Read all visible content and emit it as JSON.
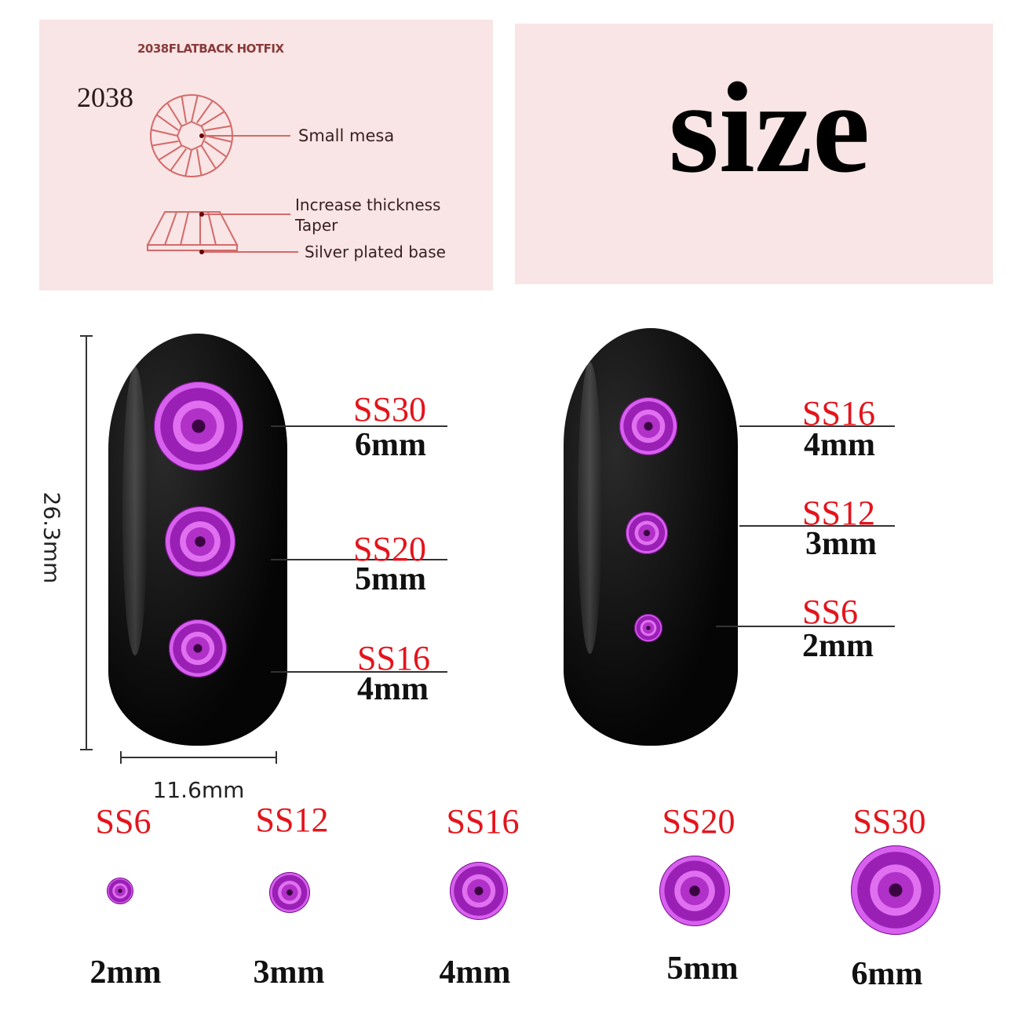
{
  "diagram": {
    "header": "2038FLATBACK HOTFIX",
    "model": "2038",
    "labels": [
      "Small mesa",
      "Increase thickness",
      "Taper",
      "Silver plated base"
    ]
  },
  "title": "size",
  "nail_dims": {
    "height": "26.3mm",
    "width": "11.6mm"
  },
  "left_nail": [
    {
      "ss": "SS30",
      "mm": "6mm"
    },
    {
      "ss": "SS20",
      "mm": "5mm"
    },
    {
      "ss": "SS16",
      "mm": "4mm"
    }
  ],
  "right_nail": [
    {
      "ss": "SS16",
      "mm": "4mm"
    },
    {
      "ss": "SS12",
      "mm": "3mm"
    },
    {
      "ss": "SS6",
      "mm": "2mm"
    }
  ],
  "sizes": [
    {
      "ss": "SS6",
      "mm": "2mm"
    },
    {
      "ss": "SS12",
      "mm": "3mm"
    },
    {
      "ss": "SS16",
      "mm": "4mm"
    },
    {
      "ss": "SS20",
      "mm": "5mm"
    },
    {
      "ss": "SS30",
      "mm": "6mm"
    }
  ],
  "colors": {
    "label_red": "#e4141c",
    "gem_purple": "#b030c8",
    "panel_pink": "#f9e5e5",
    "diagram_line": "#d46a6a"
  }
}
